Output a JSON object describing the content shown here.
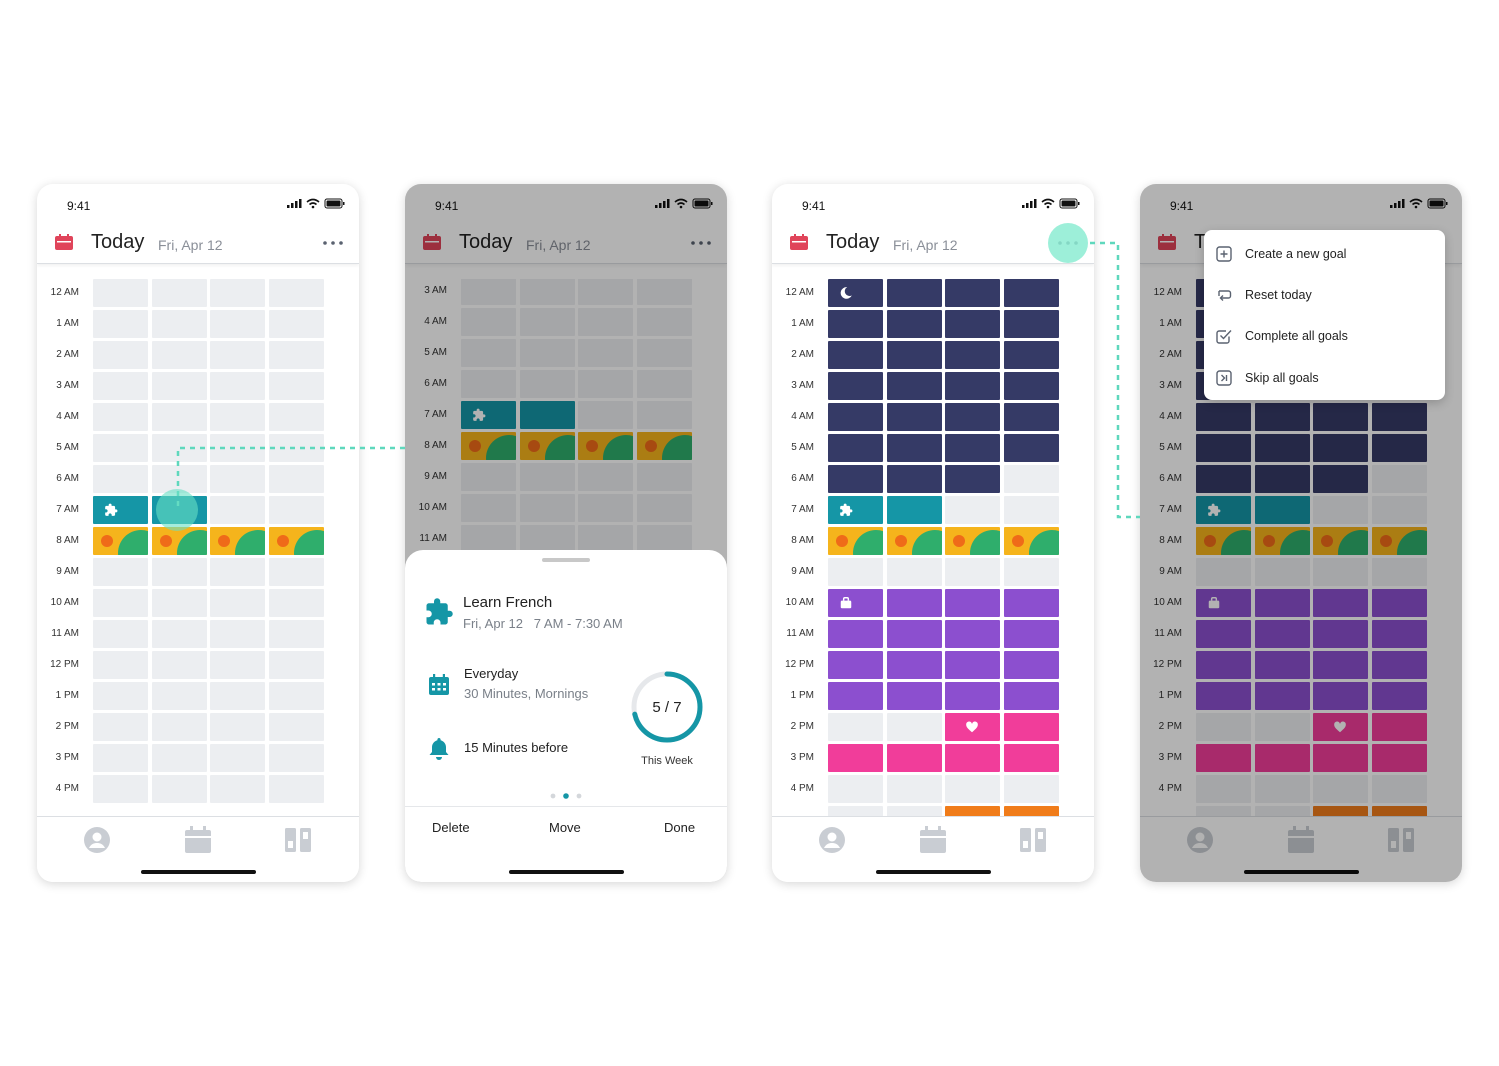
{
  "status": {
    "time": "9:41"
  },
  "header": {
    "title": "Today",
    "date": "Fri, Apr 12"
  },
  "hours_a": [
    "12 AM",
    "1 AM",
    "2 AM",
    "3 AM",
    "4 AM",
    "5 AM",
    "6 AM",
    "7 AM",
    "8 AM",
    "9 AM",
    "10 AM",
    "11 AM",
    "12 PM",
    "1 PM",
    "2 PM",
    "3 PM",
    "4 PM"
  ],
  "hours_b": [
    "3 AM",
    "4 AM",
    "5 AM",
    "6 AM",
    "7 AM",
    "8 AM",
    "9 AM",
    "10 AM",
    "11 AM"
  ],
  "grid_a": [
    [
      "e",
      "e",
      "e",
      "e"
    ],
    [
      "e",
      "e",
      "e",
      "e"
    ],
    [
      "e",
      "e",
      "e",
      "e"
    ],
    [
      "e",
      "e",
      "e",
      "e"
    ],
    [
      "e",
      "e",
      "e",
      "e"
    ],
    [
      "e",
      "e",
      "e",
      "e"
    ],
    [
      "e",
      "e",
      "e",
      "e"
    ],
    [
      "teal:puzzle",
      "teal",
      "e",
      "e"
    ],
    [
      "sun",
      "sun",
      "sun",
      "sun"
    ],
    [
      "e",
      "e",
      "e",
      "e"
    ],
    [
      "e",
      "e",
      "e",
      "e"
    ],
    [
      "e",
      "e",
      "e",
      "e"
    ],
    [
      "e",
      "e",
      "e",
      "e"
    ],
    [
      "e",
      "e",
      "e",
      "e"
    ],
    [
      "e",
      "e",
      "e",
      "e"
    ],
    [
      "e",
      "e",
      "e",
      "e"
    ],
    [
      "e",
      "e",
      "e",
      "e"
    ]
  ],
  "grid_b": [
    [
      "e",
      "e",
      "e",
      "e"
    ],
    [
      "e",
      "e",
      "e",
      "e"
    ],
    [
      "e",
      "e",
      "e",
      "e"
    ],
    [
      "e",
      "e",
      "e",
      "e"
    ],
    [
      "teal:puzzle",
      "teal",
      "e",
      "e"
    ],
    [
      "sun",
      "sun",
      "sun",
      "sun"
    ],
    [
      "e",
      "e",
      "e",
      "e"
    ],
    [
      "e",
      "e",
      "e",
      "e"
    ],
    [
      "e",
      "e",
      "e",
      "e"
    ]
  ],
  "grid_c": [
    [
      "night:moon",
      "night",
      "night",
      "night"
    ],
    [
      "night",
      "night",
      "night",
      "night"
    ],
    [
      "night",
      "night",
      "night",
      "night"
    ],
    [
      "night",
      "night",
      "night",
      "night"
    ],
    [
      "night",
      "night",
      "night",
      "night"
    ],
    [
      "night",
      "night",
      "night",
      "night"
    ],
    [
      "night",
      "night",
      "night",
      "e"
    ],
    [
      "teal:puzzle",
      "teal",
      "e",
      "e"
    ],
    [
      "sun",
      "sun",
      "sun",
      "sun"
    ],
    [
      "e",
      "e",
      "e",
      "e"
    ],
    [
      "purple:bag",
      "purple",
      "purple",
      "purple"
    ],
    [
      "purple",
      "purple",
      "purple",
      "purple"
    ],
    [
      "purple",
      "purple",
      "purple",
      "purple"
    ],
    [
      "purple",
      "purple",
      "purple",
      "purple"
    ],
    [
      "e",
      "e",
      "pink:heart",
      "pink"
    ],
    [
      "pink",
      "pink",
      "pink",
      "pink"
    ],
    [
      "e",
      "e",
      "e",
      "e"
    ],
    [
      "e",
      "e",
      "orange:spark",
      "orange"
    ]
  ],
  "goal_sheet": {
    "title": "Learn French",
    "when": "Fri, Apr 12   7 AM - 7:30 AM",
    "frequency": "Everyday",
    "frequency_detail": "30 Minutes, Mornings",
    "reminder": "15 Minutes before",
    "progress": "5 / 7",
    "progress_fraction": 0.714,
    "progress_label": "This Week",
    "actions": {
      "delete": "Delete",
      "move": "Move",
      "done": "Done"
    }
  },
  "menu": [
    {
      "label": "Create a new goal",
      "icon": "plus-square-icon"
    },
    {
      "label": "Reset today",
      "icon": "reset-icon"
    },
    {
      "label": "Complete all goals",
      "icon": "check-square-icon"
    },
    {
      "label": "Skip all goals",
      "icon": "skip-icon"
    }
  ],
  "tabs": [
    "profile-icon",
    "calendar-icon",
    "board-icon"
  ],
  "colors": {
    "accent": "#e0445a",
    "night": "#353a66",
    "teal": "#1596a6",
    "purple": "#8c4fcf",
    "pink": "#f13d9a",
    "orange": "#f07c1a",
    "sun": "#f5b41c",
    "hill": "#2fae6c",
    "connector": "#5fd8bd",
    "empty": "#eceef1"
  }
}
